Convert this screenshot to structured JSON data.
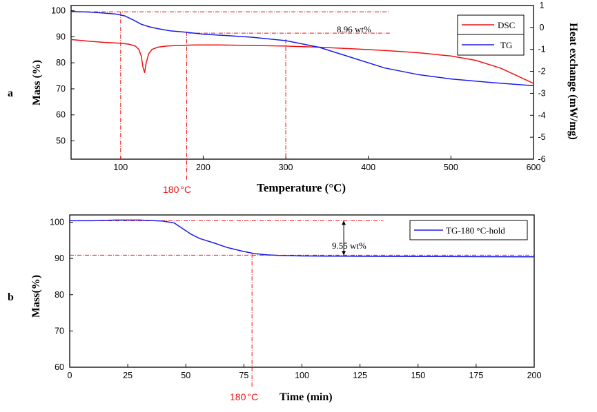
{
  "chart_data": [
    {
      "type": "line",
      "panel_label": "a",
      "xlabel": "Temperature (°C)",
      "ylabel": "Mass (%)",
      "y2label": "Heat exchange (mW/mg)",
      "xlim": [
        40,
        600
      ],
      "ylim": [
        43,
        102
      ],
      "y2lim": [
        -6,
        1
      ],
      "x_ticks": [
        100,
        200,
        300,
        400,
        500,
        600
      ],
      "y_ticks": [
        50,
        60,
        70,
        80,
        90,
        100
      ],
      "y2_ticks": [
        1,
        0,
        -1,
        -2,
        -3,
        -4,
        -5,
        -6
      ],
      "legend_position": "top-right",
      "series": [
        {
          "name": "DSC",
          "axis": "right",
          "color": "#ee1111",
          "x": [
            40,
            60,
            80,
            100,
            110,
            118,
            122,
            125,
            127,
            129,
            131,
            134,
            138,
            145,
            155,
            170,
            190,
            220,
            260,
            300,
            340,
            380,
            420,
            460,
            500,
            530,
            560,
            580,
            600
          ],
          "y": [
            -0.55,
            -0.62,
            -0.68,
            -0.72,
            -0.76,
            -0.85,
            -1.0,
            -1.3,
            -1.8,
            -2.05,
            -1.6,
            -1.2,
            -1.0,
            -0.9,
            -0.85,
            -0.82,
            -0.8,
            -0.8,
            -0.82,
            -0.85,
            -0.9,
            -0.97,
            -1.05,
            -1.15,
            -1.3,
            -1.5,
            -1.85,
            -2.2,
            -2.55
          ]
        },
        {
          "name": "TG",
          "axis": "left",
          "color": "#1a1aee",
          "x": [
            40,
            60,
            80,
            95,
            105,
            115,
            125,
            135,
            145,
            160,
            180,
            200,
            230,
            260,
            300,
            340,
            380,
            420,
            460,
            500,
            550,
            600
          ],
          "y": [
            99.7,
            99.5,
            99.1,
            98.7,
            98.0,
            96.5,
            94.8,
            93.8,
            93.1,
            92.3,
            91.7,
            91.0,
            90.4,
            89.8,
            88.5,
            86.0,
            82.0,
            78.0,
            75.5,
            73.8,
            72.4,
            71.2
          ]
        }
      ],
      "annotations": {
        "mass_loss": "8.96 wt%",
        "temp_label": "180",
        "temp_unit": "°C"
      }
    },
    {
      "type": "line",
      "panel_label": "b",
      "xlabel": "Time (min)",
      "ylabel": "Mass(%)",
      "xlim": [
        0,
        200
      ],
      "ylim": [
        60,
        102
      ],
      "x_ticks": [
        0,
        25,
        50,
        75,
        100,
        125,
        150,
        175,
        200
      ],
      "y_ticks": [
        60,
        70,
        80,
        90,
        100
      ],
      "legend_position": "top-right",
      "series": [
        {
          "name": "TG-180 °C-hold",
          "axis": "left",
          "color": "#1a1aee",
          "x": [
            0,
            10,
            20,
            30,
            40,
            45,
            48,
            52,
            56,
            62,
            68,
            75,
            80,
            85,
            90,
            100,
            110,
            125,
            150,
            175,
            200
          ],
          "y": [
            100.4,
            100.4,
            100.6,
            100.6,
            100.3,
            99.8,
            98.5,
            96.8,
            95.5,
            94.3,
            93.0,
            91.9,
            91.3,
            91.0,
            90.85,
            90.7,
            90.65,
            90.6,
            90.55,
            90.5,
            90.45
          ]
        }
      ],
      "annotations": {
        "mass_loss": "9.55 wt%",
        "temp_label": "180",
        "temp_unit": "°C"
      }
    }
  ],
  "colors": {
    "dsc": "#ee1111",
    "tg": "#1a1aee",
    "guide": "#ee1111"
  }
}
